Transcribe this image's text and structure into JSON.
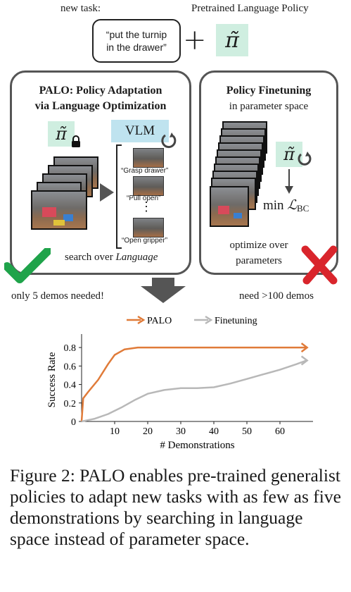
{
  "header": {
    "new_task_label": "new task:",
    "task_prompt_line1": "“put the turnip",
    "task_prompt_line2": "in the drawer”",
    "plus": "+",
    "pretrained_label": "Pretrained Language Policy",
    "policy_symbol": "π̃"
  },
  "left_panel": {
    "title_line1": "PALO: Policy Adaptation",
    "title_line2": "via Language Optimization",
    "vlm_label": "VLM",
    "policy_symbol": "π̃",
    "instructions": [
      "“Grasp drawer”",
      "“Pull open”",
      "“Open gripper”"
    ],
    "vdots": "⋮",
    "footer_prefix": "search over ",
    "footer_emph": "Language"
  },
  "right_panel": {
    "title_line1": "Policy Finetuning",
    "title_line2": "in parameter space",
    "policy_symbol": "π̃",
    "loss_prefix": "min ",
    "loss_symbol": "ℒ",
    "loss_sub": "BC",
    "footer_line1": "optimize over",
    "footer_line2": "parameters"
  },
  "labels": {
    "left_note": "only 5 demos needed!",
    "right_note": "need >100 demos"
  },
  "colors": {
    "palo": "#e07b39",
    "finetuning": "#b8b8b8",
    "check": "#1fa34a",
    "cross": "#d9252c",
    "policy_tile": "#cfeee0",
    "vlm_tile": "#bfe3ef"
  },
  "chart_data": {
    "type": "line",
    "xlabel": "# Demonstrations",
    "ylabel": "Success Rate",
    "xlim": [
      0,
      70
    ],
    "ylim": [
      0,
      0.9
    ],
    "xticks": [
      10,
      20,
      30,
      40,
      50,
      60
    ],
    "yticks": [
      0,
      0.2,
      0.4,
      0.6,
      0.8
    ],
    "legend_position": "top",
    "series": [
      {
        "name": "PALO",
        "color": "#e07b39",
        "x": [
          0,
          0.5,
          2,
          5,
          8,
          10,
          13,
          17,
          20,
          30,
          40,
          50,
          60,
          68
        ],
        "y": [
          0,
          0.25,
          0.32,
          0.45,
          0.62,
          0.72,
          0.78,
          0.8,
          0.8,
          0.8,
          0.8,
          0.8,
          0.8,
          0.8
        ]
      },
      {
        "name": "Finetuning",
        "color": "#b8b8b8",
        "x": [
          0,
          4,
          8,
          12,
          16,
          20,
          25,
          30,
          35,
          40,
          45,
          50,
          55,
          60,
          65,
          68
        ],
        "y": [
          0,
          0.03,
          0.08,
          0.15,
          0.23,
          0.3,
          0.34,
          0.36,
          0.36,
          0.37,
          0.41,
          0.46,
          0.51,
          0.56,
          0.62,
          0.66
        ]
      }
    ]
  },
  "caption": "Figure 2:  PALO enables pre-trained generalist policies to adapt new tasks with as few as five demonstrations by searching in language space instead of parameter space."
}
